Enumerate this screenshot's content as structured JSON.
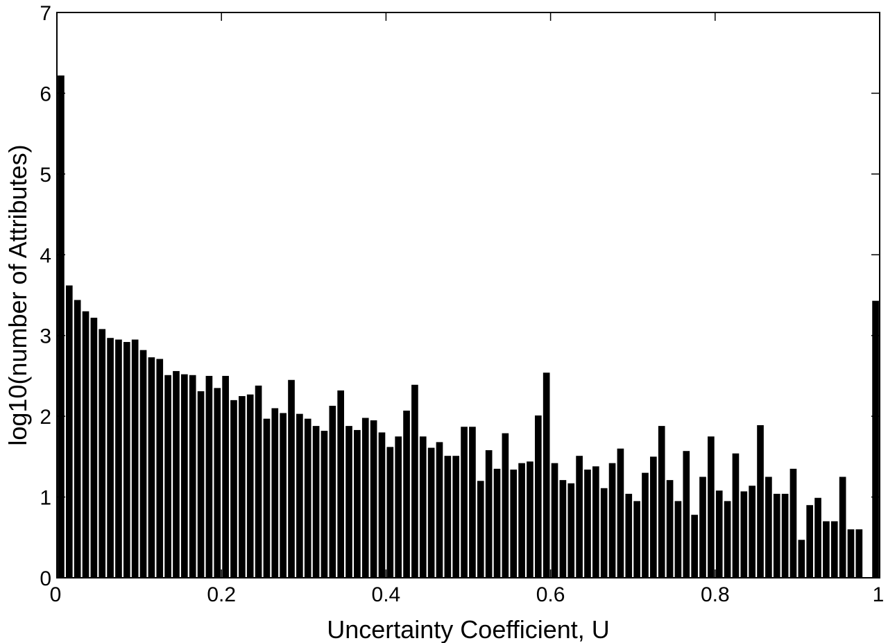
{
  "chart_data": {
    "type": "bar",
    "title": "",
    "xlabel": "Uncertainty Coefficient, U",
    "ylabel": "log10(number of Attributes)",
    "xlim": [
      0,
      1
    ],
    "ylim": [
      0,
      7
    ],
    "xticks": [
      "0",
      "0.2",
      "0.4",
      "0.6",
      "0.8",
      "1"
    ],
    "yticks": [
      "0",
      "1",
      "2",
      "3",
      "4",
      "5",
      "6",
      "7"
    ],
    "bin_width": 0.01,
    "grid": false,
    "x": [
      0.005,
      0.015,
      0.025,
      0.035,
      0.045,
      0.055,
      0.065,
      0.075,
      0.085,
      0.095,
      0.105,
      0.115,
      0.125,
      0.135,
      0.145,
      0.155,
      0.165,
      0.175,
      0.185,
      0.195,
      0.205,
      0.215,
      0.225,
      0.235,
      0.245,
      0.255,
      0.265,
      0.275,
      0.285,
      0.295,
      0.305,
      0.315,
      0.325,
      0.335,
      0.345,
      0.355,
      0.365,
      0.375,
      0.385,
      0.395,
      0.405,
      0.415,
      0.425,
      0.435,
      0.445,
      0.455,
      0.465,
      0.475,
      0.485,
      0.495,
      0.505,
      0.515,
      0.525,
      0.535,
      0.545,
      0.555,
      0.565,
      0.575,
      0.585,
      0.595,
      0.605,
      0.615,
      0.625,
      0.635,
      0.645,
      0.655,
      0.665,
      0.675,
      0.685,
      0.695,
      0.705,
      0.715,
      0.725,
      0.735,
      0.745,
      0.755,
      0.765,
      0.775,
      0.785,
      0.795,
      0.805,
      0.815,
      0.825,
      0.835,
      0.845,
      0.855,
      0.865,
      0.875,
      0.885,
      0.895,
      0.905,
      0.915,
      0.925,
      0.935,
      0.945,
      0.955,
      0.965,
      0.975,
      0.985,
      0.995
    ],
    "values": [
      6.22,
      3.62,
      3.44,
      3.3,
      3.22,
      3.08,
      2.97,
      2.95,
      2.92,
      2.95,
      2.82,
      2.73,
      2.71,
      2.51,
      2.56,
      2.52,
      2.51,
      2.31,
      2.5,
      2.35,
      2.5,
      2.2,
      2.25,
      2.27,
      2.38,
      1.97,
      2.1,
      2.04,
      2.45,
      2.03,
      1.97,
      1.88,
      1.82,
      2.13,
      2.32,
      1.88,
      1.83,
      1.98,
      1.95,
      1.8,
      1.62,
      1.75,
      2.07,
      2.39,
      1.75,
      1.61,
      1.68,
      1.51,
      1.51,
      1.87,
      1.87,
      1.2,
      1.58,
      1.35,
      1.79,
      1.34,
      1.42,
      1.44,
      2.01,
      2.54,
      1.42,
      1.21,
      1.17,
      1.51,
      1.34,
      1.38,
      1.11,
      1.42,
      1.6,
      1.04,
      0.95,
      1.3,
      1.5,
      1.88,
      1.21,
      0.95,
      1.57,
      0.78,
      1.25,
      1.75,
      1.08,
      0.95,
      1.54,
      1.07,
      1.14,
      1.89,
      1.25,
      1.04,
      1.04,
      1.35,
      0.47,
      0.9,
      0.99,
      0.7,
      0.7,
      1.25,
      0.6,
      0.6,
      0.0,
      3.43
    ]
  }
}
